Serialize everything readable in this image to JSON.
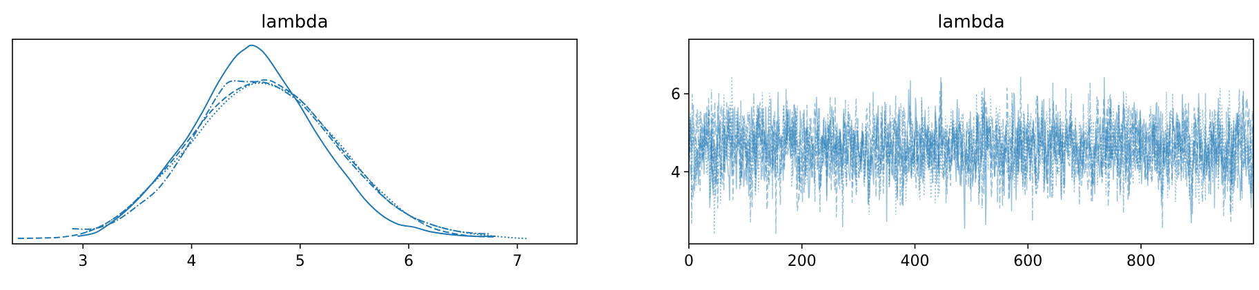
{
  "colors": {
    "series": "#1f77b4",
    "axis": "#000000",
    "background": "#ffffff"
  },
  "chart_data": [
    {
      "type": "line",
      "subtype": "kde",
      "title": "lambda",
      "xlabel": "",
      "ylabel": "",
      "xlim": [
        2.35,
        7.55
      ],
      "ylim": [
        -0.015,
        0.66
      ],
      "xticks": [
        3,
        4,
        5,
        6,
        7
      ],
      "yticks": [],
      "grid": false,
      "series": [
        {
          "linestyle": "solid",
          "x": [
            2.95,
            3.1,
            3.2,
            3.35,
            3.5,
            3.65,
            3.8,
            3.95,
            4.1,
            4.25,
            4.4,
            4.5,
            4.55,
            4.62,
            4.7,
            4.85,
            5.0,
            5.15,
            5.3,
            5.45,
            5.6,
            5.75,
            5.9,
            6.05,
            6.2,
            6.4,
            6.6,
            6.8
          ],
          "y": [
            0.01,
            0.02,
            0.04,
            0.08,
            0.13,
            0.19,
            0.26,
            0.33,
            0.42,
            0.52,
            0.6,
            0.63,
            0.64,
            0.63,
            0.6,
            0.52,
            0.44,
            0.35,
            0.27,
            0.2,
            0.13,
            0.08,
            0.05,
            0.04,
            0.025,
            0.015,
            0.01,
            0.01
          ]
        },
        {
          "linestyle": "dashed",
          "x": [
            2.4,
            2.6,
            2.8,
            3.0,
            3.2,
            3.4,
            3.6,
            3.8,
            4.0,
            4.2,
            4.4,
            4.6,
            4.7,
            4.8,
            5.0,
            5.2,
            5.4,
            5.6,
            5.8,
            6.0,
            6.2,
            6.4,
            6.6,
            6.8
          ],
          "y": [
            0.003,
            0.004,
            0.007,
            0.02,
            0.05,
            0.1,
            0.17,
            0.25,
            0.34,
            0.43,
            0.49,
            0.52,
            0.525,
            0.51,
            0.46,
            0.38,
            0.29,
            0.21,
            0.13,
            0.08,
            0.04,
            0.02,
            0.01,
            0.008
          ]
        },
        {
          "linestyle": "dotted",
          "x": [
            3.0,
            3.2,
            3.4,
            3.6,
            3.8,
            4.0,
            4.2,
            4.4,
            4.6,
            4.8,
            5.0,
            5.2,
            5.4,
            5.6,
            5.8,
            6.0,
            6.2,
            6.4,
            6.6,
            6.8,
            7.0,
            7.1
          ],
          "y": [
            0.02,
            0.05,
            0.1,
            0.17,
            0.24,
            0.32,
            0.41,
            0.48,
            0.515,
            0.5,
            0.46,
            0.38,
            0.3,
            0.21,
            0.14,
            0.08,
            0.05,
            0.03,
            0.018,
            0.01,
            0.004,
            0.002
          ]
        },
        {
          "linestyle": "dashdot",
          "x": [
            2.9,
            3.1,
            3.3,
            3.5,
            3.7,
            3.9,
            4.1,
            4.25,
            4.35,
            4.5,
            4.6,
            4.7,
            4.8,
            5.0,
            5.2,
            5.4,
            5.6,
            5.8,
            6.0,
            6.2,
            6.4,
            6.6,
            6.75
          ],
          "y": [
            0.035,
            0.035,
            0.06,
            0.11,
            0.17,
            0.27,
            0.39,
            0.48,
            0.52,
            0.52,
            0.52,
            0.515,
            0.5,
            0.45,
            0.37,
            0.28,
            0.2,
            0.13,
            0.08,
            0.05,
            0.03,
            0.02,
            0.018
          ]
        }
      ]
    },
    {
      "type": "line",
      "subtype": "trace",
      "title": "lambda",
      "xlabel": "",
      "ylabel": "",
      "xlim": [
        0,
        999
      ],
      "ylim": [
        2.15,
        7.4
      ],
      "xticks": [
        0,
        200,
        400,
        600,
        800
      ],
      "yticks": [
        4,
        6
      ],
      "grid": false,
      "n_draws": 1000,
      "chains": 4,
      "chain_linestyles": [
        "solid",
        "dotted",
        "dashed",
        "dashdot"
      ],
      "mean": 4.6,
      "sd": 0.6,
      "visible_min": 2.4,
      "visible_max": 7.1
    }
  ]
}
